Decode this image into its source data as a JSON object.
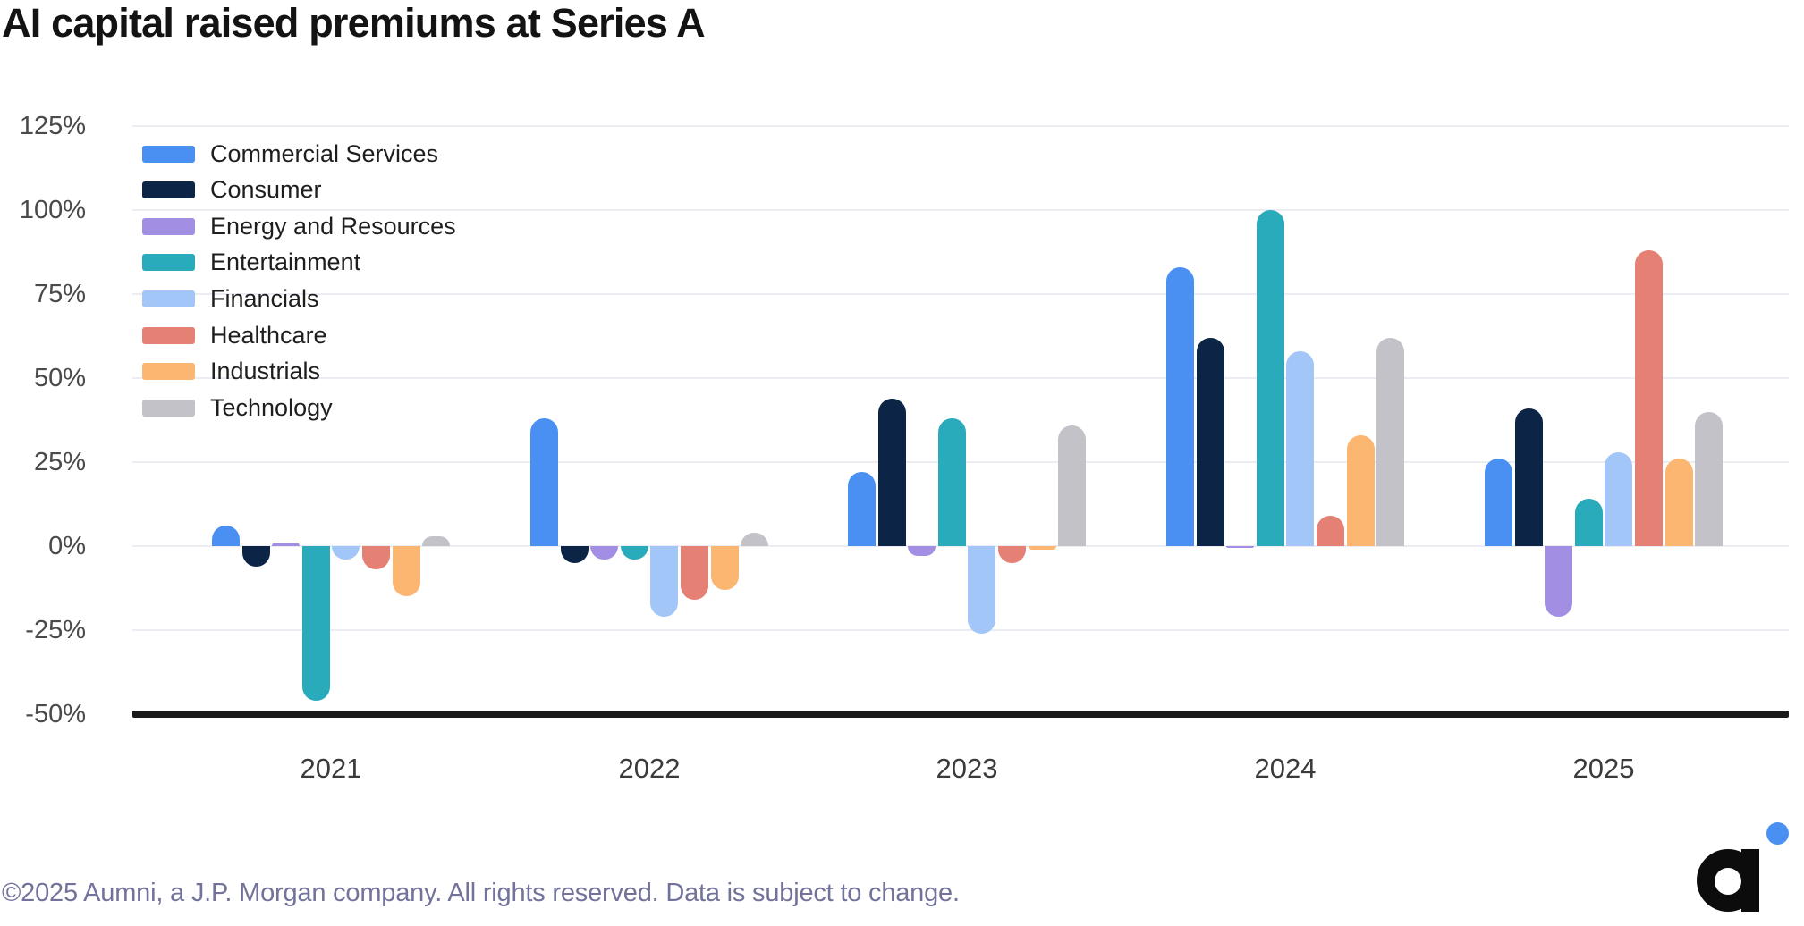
{
  "title": "AI capital raised premiums at Series A",
  "footer": {
    "text": "©2025 Aumni, a J.P. Morgan company. All rights reserved. Data is subject to change."
  },
  "logo": {
    "name": "Aumni",
    "dot_color": "#4A90F2",
    "mark_color": "#0c0c0c"
  },
  "chart_data": {
    "type": "bar",
    "title": "AI capital raised premiums at Series A",
    "categories": [
      "2021",
      "2022",
      "2023",
      "2024",
      "2025"
    ],
    "series": [
      {
        "name": "Commercial Services",
        "color": "#4A90F2",
        "values": [
          6,
          38,
          22,
          83,
          26
        ]
      },
      {
        "name": "Consumer",
        "color": "#0C2446",
        "values": [
          -6,
          -5,
          44,
          62,
          41
        ]
      },
      {
        "name": "Energy and Resources",
        "color": "#A28EE3",
        "values": [
          1,
          -4,
          -3,
          -0.5,
          -21
        ]
      },
      {
        "name": "Entertainment",
        "color": "#2AABBC",
        "values": [
          -46,
          -4,
          38,
          100,
          14
        ]
      },
      {
        "name": "Financials",
        "color": "#A2C6F8",
        "values": [
          -4,
          -21,
          -26,
          58,
          28
        ]
      },
      {
        "name": "Healthcare",
        "color": "#E58074",
        "values": [
          -7,
          -16,
          -5,
          9,
          88
        ]
      },
      {
        "name": "Industrials",
        "color": "#FBB671",
        "values": [
          -15,
          -13,
          -1,
          33,
          26
        ]
      },
      {
        "name": "Technology",
        "color": "#C3C2C8",
        "values": [
          3,
          4,
          36,
          62,
          40
        ]
      }
    ],
    "y_ticks": [
      {
        "label": "125%",
        "value": 125
      },
      {
        "label": "100%",
        "value": 100
      },
      {
        "label": "75%",
        "value": 75
      },
      {
        "label": "50%",
        "value": 50
      },
      {
        "label": "25%",
        "value": 25
      },
      {
        "label": "0%",
        "value": 0
      },
      {
        "label": "-25%",
        "value": -25
      },
      {
        "label": "-50%",
        "value": -50
      }
    ],
    "ylim": [
      -50,
      125
    ],
    "grid": true,
    "legend_position": "top-left",
    "baseline": 0
  }
}
